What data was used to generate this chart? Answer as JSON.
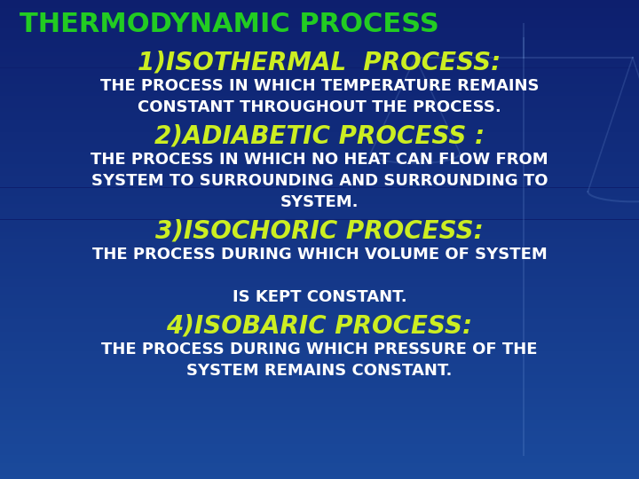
{
  "bg_top": "#0d1f6e",
  "bg_bottom": "#1a4a9c",
  "title": "THERMODYNAMIC PROCESS",
  "title_color": "#22cc22",
  "title_fontsize": 22,
  "sections": [
    {
      "heading": "1)ISOTHERMAL  PROCESS:",
      "heading_color": "#ccee22",
      "heading_fontsize": 20,
      "body_lines": [
        "THE PROCESS IN WHICH TEMPERATURE REMAINS",
        "CONSTANT THROUGHOUT THE PROCESS."
      ],
      "body_color": "#ffffff",
      "body_fontsize": 13
    },
    {
      "heading": "2)ADIABETIC PROCESS :",
      "heading_color": "#ccee22",
      "heading_fontsize": 20,
      "body_lines": [
        "THE PROCESS IN WHICH NO HEAT CAN FLOW FROM",
        "SYSTEM TO SURROUNDING AND SURROUNDING TO",
        "SYSTEM."
      ],
      "body_color": "#ffffff",
      "body_fontsize": 13
    },
    {
      "heading": "3)ISOCHORIC PROCESS:",
      "heading_color": "#ccee22",
      "heading_fontsize": 20,
      "body_lines": [
        "THE PROCESS DURING WHICH VOLUME OF SYSTEM",
        "",
        "IS KEPT CONSTANT."
      ],
      "body_color": "#ffffff",
      "body_fontsize": 13
    },
    {
      "heading": "4)ISOBARIC PROCESS:",
      "heading_color": "#ccee22",
      "heading_fontsize": 20,
      "body_lines": [
        "THE PROCESS DURING WHICH PRESSURE OF THE",
        "SYSTEM REMAINS CONSTANT."
      ],
      "body_color": "#ffffff",
      "body_fontsize": 13
    }
  ],
  "scale_color": [
    0.5,
    0.65,
    0.9,
    0.18
  ]
}
